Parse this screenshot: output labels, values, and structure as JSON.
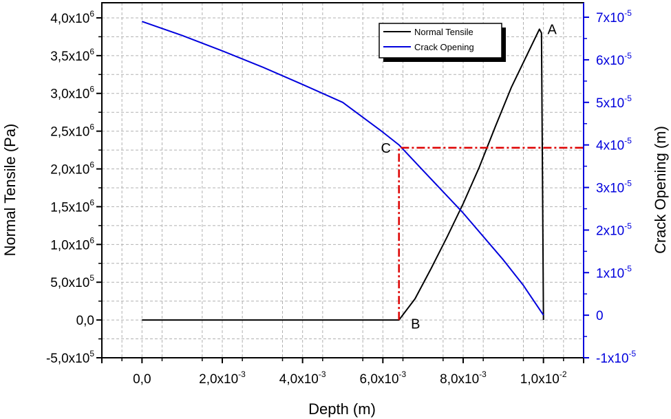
{
  "chart_data": {
    "type": "line",
    "xlabel": "Depth (m)",
    "ylabel_left": "Normal Tensile (Pa)",
    "ylabel_right": "Crack Opening (m)",
    "xlim": [
      -0.001,
      0.011
    ],
    "ylim_left": [
      -500000,
      4200000
    ],
    "ylim_right": [
      -1e-05,
      7.34e-05
    ],
    "grid": true,
    "legend_position": "top-right",
    "x_ticks": [
      {
        "value": 0,
        "mant": "0,0",
        "exp": ""
      },
      {
        "value": 0.002,
        "mant": "2,0x10",
        "exp": "-3"
      },
      {
        "value": 0.004,
        "mant": "4,0x10",
        "exp": "-3"
      },
      {
        "value": 0.006,
        "mant": "6,0x10",
        "exp": "-3"
      },
      {
        "value": 0.008,
        "mant": "8,0x10",
        "exp": "-3"
      },
      {
        "value": 0.01,
        "mant": "1,0x10",
        "exp": "-2"
      }
    ],
    "y_left_ticks": [
      {
        "value": -500000,
        "mant": "-5,0x10",
        "exp": "5"
      },
      {
        "value": 0,
        "mant": "0,0",
        "exp": ""
      },
      {
        "value": 500000,
        "mant": "5,0x10",
        "exp": "5"
      },
      {
        "value": 1000000,
        "mant": "1,0x10",
        "exp": "6"
      },
      {
        "value": 1500000,
        "mant": "1,5x10",
        "exp": "6"
      },
      {
        "value": 2000000,
        "mant": "2,0x10",
        "exp": "6"
      },
      {
        "value": 2500000,
        "mant": "2,5x10",
        "exp": "6"
      },
      {
        "value": 3000000,
        "mant": "3,0x10",
        "exp": "6"
      },
      {
        "value": 3500000,
        "mant": "3,5x10",
        "exp": "6"
      },
      {
        "value": 4000000,
        "mant": "4,0x10",
        "exp": "6"
      }
    ],
    "y_right_ticks": [
      {
        "value": -1e-05,
        "mant": "-1x10",
        "exp": "-5"
      },
      {
        "value": 0,
        "mant": "0",
        "exp": ""
      },
      {
        "value": 1e-05,
        "mant": "1x10",
        "exp": "-5"
      },
      {
        "value": 2e-05,
        "mant": "2x10",
        "exp": "-5"
      },
      {
        "value": 3e-05,
        "mant": "3x10",
        "exp": "-5"
      },
      {
        "value": 4e-05,
        "mant": "4x10",
        "exp": "-5"
      },
      {
        "value": 5e-05,
        "mant": "5x10",
        "exp": "-5"
      },
      {
        "value": 6e-05,
        "mant": "6x10",
        "exp": "-5"
      },
      {
        "value": 7e-05,
        "mant": "7x10",
        "exp": "-5"
      }
    ],
    "series": [
      {
        "name": "Normal Tensile",
        "axis": "left",
        "color": "#000000",
        "x": [
          0,
          0.001,
          0.002,
          0.003,
          0.004,
          0.005,
          0.006,
          0.0064,
          0.0068,
          0.0072,
          0.0076,
          0.008,
          0.0084,
          0.0088,
          0.0092,
          0.0096,
          0.0099,
          0.00995,
          0.01
        ],
        "y": [
          0,
          0,
          0,
          0,
          0,
          0,
          0,
          0,
          280000,
          680000,
          1100000,
          1540000,
          2020000,
          2560000,
          3080000,
          3520000,
          3850000,
          3800000,
          0
        ]
      },
      {
        "name": "Crack Opening",
        "axis": "right",
        "color": "#0000dd",
        "x": [
          0,
          0.001,
          0.002,
          0.003,
          0.004,
          0.005,
          0.006,
          0.0064,
          0.007,
          0.008,
          0.009,
          0.0095,
          0.01
        ],
        "y": [
          6.9e-05,
          6.57e-05,
          6.21e-05,
          5.83e-05,
          5.42e-05,
          5e-05,
          4.3e-05,
          4e-05,
          3.4e-05,
          2.4e-05,
          1.3e-05,
          7e-06,
          0
        ]
      },
      {
        "name": "",
        "axis": "left",
        "color": "#dd0000",
        "dashed": true,
        "x": [
          0.0064,
          0.0064,
          0.011
        ],
        "y": [
          0,
          2280000,
          2280000
        ]
      }
    ],
    "annotations": [
      {
        "text": "A",
        "x": 0.0101,
        "y": 3850000,
        "anchor": "start"
      },
      {
        "text": "B",
        "x": 0.0067,
        "y": -50000,
        "anchor": "start"
      },
      {
        "text": "C",
        "x": 0.0062,
        "y": 2280000,
        "anchor": "end"
      }
    ]
  }
}
